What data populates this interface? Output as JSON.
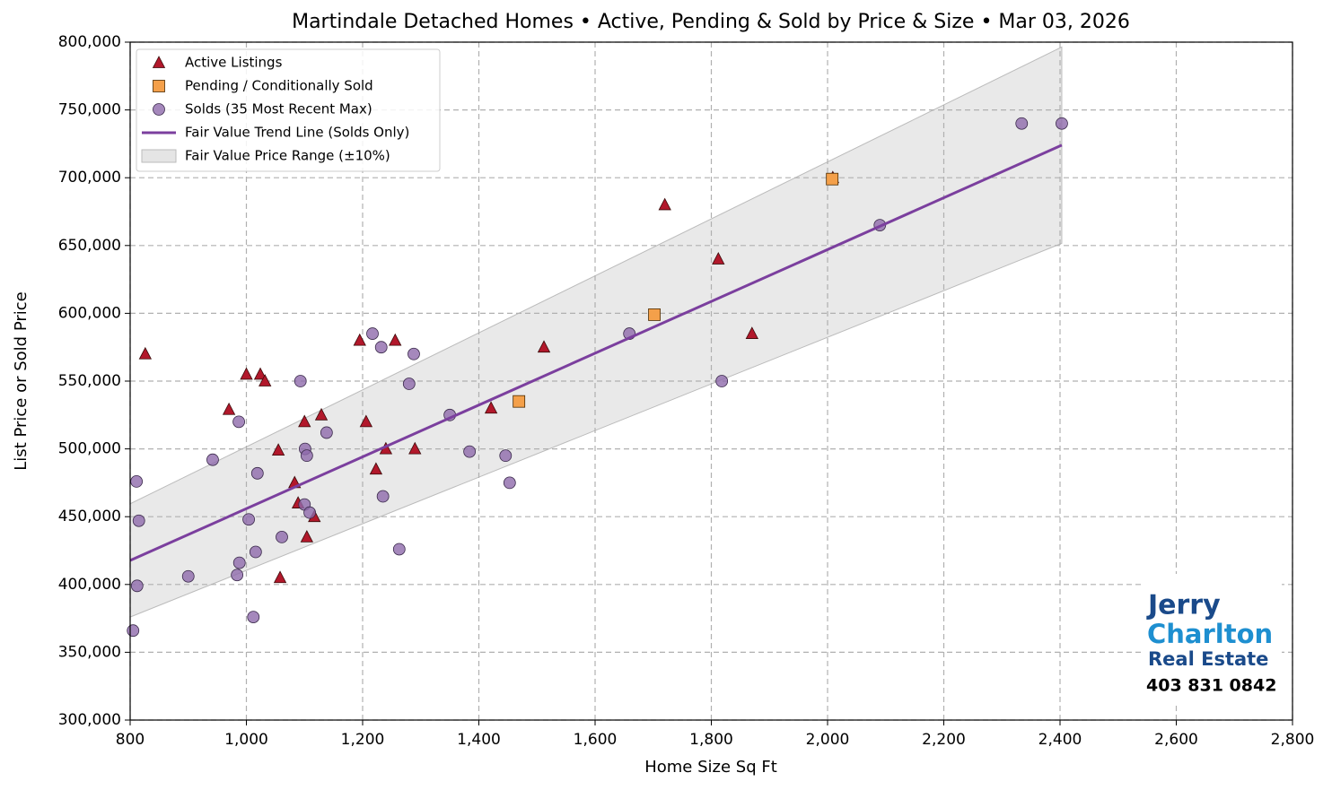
{
  "chart_data": {
    "type": "scatter",
    "title": "Martindale Detached Homes • Active, Pending & Sold by Price & Size • Mar 03, 2026",
    "x_label": "Home Size Sq Ft",
    "y_label": "List Price or Sold Price",
    "xlim": [
      800,
      2800
    ],
    "ylim": [
      300000,
      800000
    ],
    "xticks": [
      800,
      {
        "value": 1000,
        "label": "1,000"
      },
      {
        "value": 1200,
        "label": "1,200"
      },
      {
        "value": 1400,
        "label": "1,400"
      },
      {
        "value": 1600,
        "label": "1,600"
      },
      {
        "value": 1800,
        "label": "1,800"
      },
      {
        "value": 2000,
        "label": "2,000"
      },
      {
        "value": 2200,
        "label": "2,200"
      },
      {
        "value": 2400,
        "label": "2,400"
      },
      {
        "value": 2600,
        "label": "2,600"
      },
      {
        "value": 2800,
        "label": "2,800"
      }
    ],
    "yticks": [
      {
        "value": 300000,
        "label": "300,000"
      },
      {
        "value": 350000,
        "label": "350,000"
      },
      {
        "value": 400000,
        "label": "400,000"
      },
      {
        "value": 450000,
        "label": "450,000"
      },
      {
        "value": 500000,
        "label": "500,000"
      },
      {
        "value": 550000,
        "label": "550,000"
      },
      {
        "value": 600000,
        "label": "600,000"
      },
      {
        "value": 650000,
        "label": "650,000"
      },
      {
        "value": 700000,
        "label": "700,000"
      },
      {
        "value": 750000,
        "label": "750,000"
      },
      {
        "value": 800000,
        "label": "800,000"
      }
    ],
    "grid": true,
    "legend": "upper left",
    "series": [
      {
        "name": "Active Listings",
        "color": "#b2182b",
        "marker": "triangle",
        "x": [
          826,
          970,
          1000,
          1024,
          1032,
          1055,
          1058,
          1083,
          1089,
          1100,
          1104,
          1117,
          1129,
          1195,
          1206,
          1223,
          1240,
          1256,
          1290,
          1421,
          1512,
          1720,
          1812,
          1870,
          2009
        ],
        "values": [
          570000,
          529000,
          555000,
          555000,
          550000,
          499000,
          405000,
          475000,
          460000,
          520000,
          435000,
          450000,
          525000,
          580000,
          520000,
          485000,
          500000,
          580000,
          500000,
          530000,
          575000,
          680000,
          640000,
          585000,
          700000
        ]
      },
      {
        "name": "Pending / Conditionally Sold",
        "color": "#f4a04a",
        "marker": "square",
        "x": [
          1469,
          1702,
          2008
        ],
        "values": [
          535000,
          599000,
          699000
        ]
      },
      {
        "name": "Solds (35 Most Recent Max)",
        "color": "#8e6aab",
        "marker": "circle",
        "x": [
          805,
          811,
          812,
          815,
          900,
          942,
          984,
          988,
          987,
          1004,
          1012,
          1016,
          1019,
          1061,
          1093,
          1100,
          1101,
          1104,
          1109,
          1138,
          1217,
          1232,
          1235,
          1263,
          1280,
          1288,
          1350,
          1384,
          1446,
          1453,
          1659,
          1818,
          2090,
          2334,
          2403
        ],
        "values": [
          366000,
          476000,
          399000,
          447000,
          406000,
          492000,
          407000,
          416000,
          520000,
          448000,
          376000,
          424000,
          482000,
          435000,
          550000,
          459000,
          500000,
          495000,
          453000,
          512000,
          585000,
          575000,
          465000,
          426000,
          548000,
          570000,
          525000,
          498000,
          495000,
          475000,
          585000,
          550000,
          665000,
          740000,
          740000
        ]
      },
      {
        "name": "Fair Value Trend Line (Solds Only)",
        "color": "#7b3f9e",
        "marker": "line",
        "x": [
          800,
          2403
        ],
        "values": [
          417700,
          724000
        ]
      }
    ],
    "band": {
      "name": "Fair Value Price Range (±10%)",
      "color": "#d4d4d4",
      "x": [
        800,
        2403
      ],
      "lower": [
        376000,
        651600
      ],
      "upper": [
        459500,
        796400
      ]
    }
  },
  "logo": {
    "line1": "Jerry",
    "line2": "Charlton",
    "line3": "Real Estate",
    "phone": "403 831 0842"
  }
}
